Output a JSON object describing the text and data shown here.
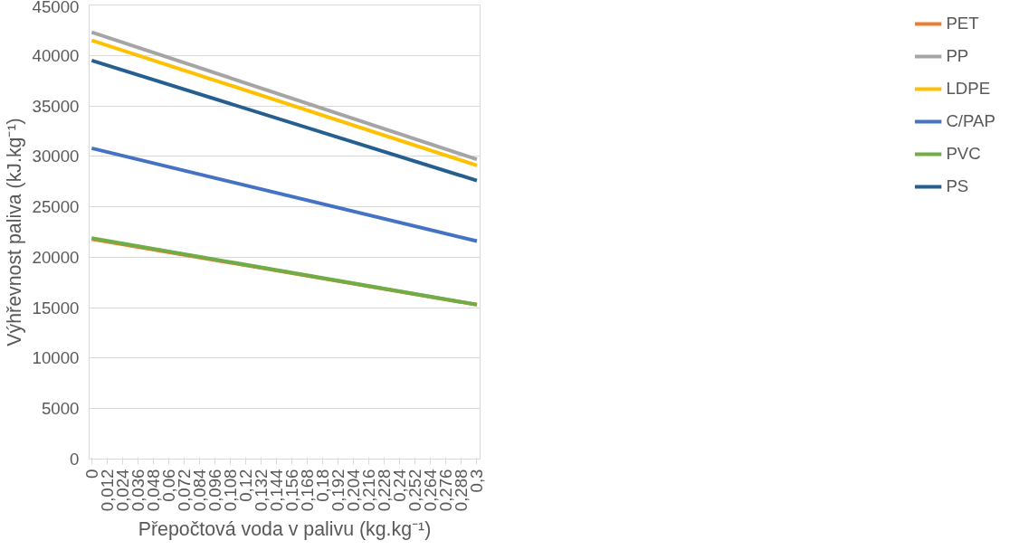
{
  "chart_data": {
    "type": "line",
    "xlabel": "Přepočtová voda v palivu (kg.kg⁻¹)",
    "ylabel": "Výhřevnost paliva (kJ.kg⁻¹)",
    "x": [
      0,
      0.3
    ],
    "series": [
      {
        "name": "PET",
        "color": "#ed7d31",
        "values": [
          21800,
          15300
        ]
      },
      {
        "name": "PP",
        "color": "#a5a5a5",
        "values": [
          42300,
          29700
        ]
      },
      {
        "name": "LDPE",
        "color": "#ffc000",
        "values": [
          41500,
          29100
        ]
      },
      {
        "name": "C/PAP",
        "color": "#4472c4",
        "values": [
          30800,
          21600
        ]
      },
      {
        "name": "PVC",
        "color": "#70ad47",
        "values": [
          21900,
          15300
        ]
      },
      {
        "name": "PS",
        "color": "#255e91",
        "values": [
          39500,
          27600
        ]
      }
    ],
    "xlim": [
      -0.002,
      0.3025
    ],
    "xticks": [
      0,
      {
        "value": 0.012,
        "label": "0,012"
      },
      {
        "value": 0.024,
        "label": "0,024"
      },
      {
        "value": 0.036,
        "label": "0,036"
      },
      {
        "value": 0.048,
        "label": "0,048"
      },
      {
        "value": 0.06,
        "label": "0,06"
      },
      {
        "value": 0.072,
        "label": "0,072"
      },
      {
        "value": 0.084,
        "label": "0,084"
      },
      {
        "value": 0.096,
        "label": "0,096"
      },
      {
        "value": 0.108,
        "label": "0,108"
      },
      {
        "value": 0.12,
        "label": "0,12"
      },
      {
        "value": 0.132,
        "label": "0,132"
      },
      {
        "value": 0.144,
        "label": "0,144"
      },
      {
        "value": 0.156,
        "label": "0,156"
      },
      {
        "value": 0.168,
        "label": "0,168"
      },
      {
        "value": 0.18,
        "label": "0,18"
      },
      {
        "value": 0.192,
        "label": "0,192"
      },
      {
        "value": 0.204,
        "label": "0,204"
      },
      {
        "value": 0.216,
        "label": "0,216"
      },
      {
        "value": 0.228,
        "label": "0,228"
      },
      {
        "value": 0.24,
        "label": "0,24"
      },
      {
        "value": 0.252,
        "label": "0,252"
      },
      {
        "value": 0.264,
        "label": "0,264"
      },
      {
        "value": 0.276,
        "label": "0,276"
      },
      {
        "value": 0.288,
        "label": "0,288"
      },
      {
        "value": 0.3,
        "label": "0,3"
      }
    ],
    "ylim": [
      0,
      45000
    ],
    "yticks": [
      0,
      5000,
      10000,
      15000,
      20000,
      25000,
      30000,
      35000,
      40000,
      45000
    ],
    "grid": "y",
    "legend": "right",
    "marker": "none",
    "line_style": "solid"
  }
}
